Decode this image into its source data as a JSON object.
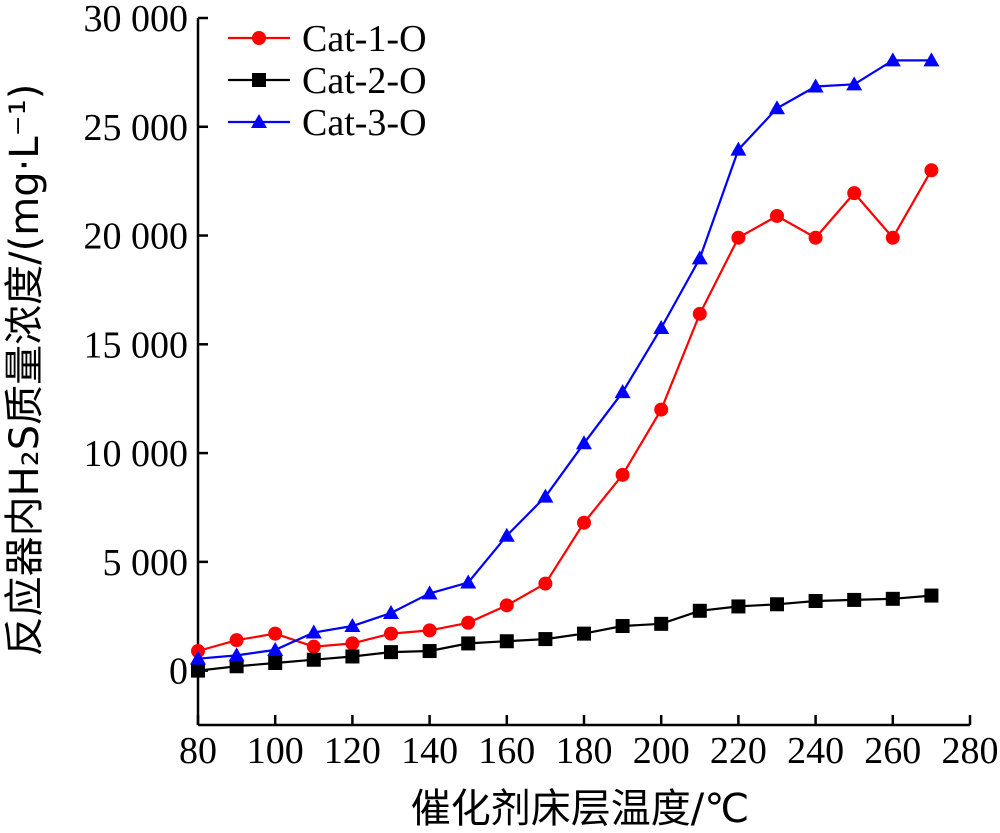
{
  "chart_data": {
    "type": "line",
    "title": "",
    "xlabel": "催化剂床层温度/℃",
    "ylabel": "反应器内H₂S质量浓度/(mg·L⁻¹)",
    "xlim": [
      80,
      280
    ],
    "ylim": [
      -2500,
      30000
    ],
    "xticks": [
      80,
      100,
      120,
      140,
      160,
      180,
      200,
      220,
      240,
      260,
      280
    ],
    "xtick_labels": [
      "80",
      "100",
      "120",
      "140",
      "160",
      "180",
      "200",
      "220",
      "240",
      "260",
      "280"
    ],
    "yticks": [
      0,
      5000,
      10000,
      15000,
      20000,
      25000,
      30000
    ],
    "ytick_labels": [
      "0",
      "5 000",
      "10 000",
      "15 000",
      "20 000",
      "25 000",
      "30 000"
    ],
    "grid": false,
    "legend_position": "top-left",
    "x": [
      80,
      90,
      100,
      110,
      120,
      130,
      140,
      150,
      160,
      170,
      180,
      190,
      200,
      210,
      220,
      230,
      240,
      250,
      260,
      270
    ],
    "series": [
      {
        "name": "Cat-1-O",
        "color": "#ff0000",
        "marker": "circle",
        "values": [
          900,
          1400,
          1700,
          1100,
          1250,
          1700,
          1850,
          2200,
          3000,
          4000,
          6800,
          9000,
          12000,
          16400,
          19900,
          20900,
          19900,
          21950,
          19900,
          23000
        ]
      },
      {
        "name": "Cat-2-O",
        "color": "#000000",
        "marker": "square",
        "values": [
          0,
          200,
          350,
          500,
          650,
          850,
          900,
          1250,
          1350,
          1450,
          1700,
          2050,
          2150,
          2750,
          2950,
          3050,
          3200,
          3250,
          3300,
          3450
        ]
      },
      {
        "name": "Cat-3-O",
        "color": "#0000ff",
        "marker": "triangle",
        "values": [
          550,
          700,
          950,
          1750,
          2050,
          2650,
          3550,
          4050,
          6200,
          8000,
          10450,
          12800,
          15750,
          18950,
          23950,
          25850,
          26850,
          26950,
          28050,
          28050
        ]
      }
    ]
  }
}
